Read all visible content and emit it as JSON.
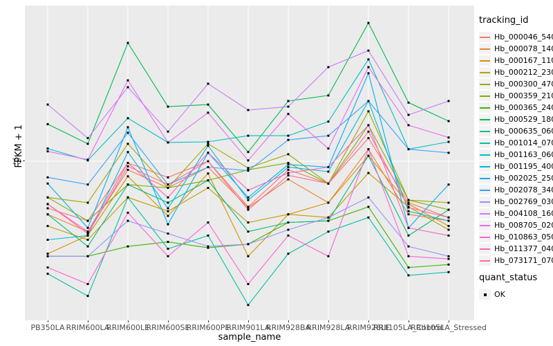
{
  "panel": {
    "bg": "#EBEBEB",
    "grid_color": "#FFFFFF",
    "point_color": "#000000",
    "tick_color": "#333333",
    "tick_label_color": "#4D4D4D"
  },
  "chart_data": {
    "type": "line",
    "title": "",
    "xlabel": "sample_name",
    "ylabel": "FPKM + 1",
    "y_scale": "log10",
    "ylim": [
      1.4,
      68
    ],
    "y_ticks": [
      10
    ],
    "y_tick_labels": [
      "10"
    ],
    "grid": "vertical-per-category-plus-y10",
    "legend_position": "right",
    "legend_title": "tracking_id",
    "legend2_title": "quant_status",
    "legend2_items": [
      {
        "label": "OK",
        "shape": "black-square"
      }
    ],
    "categories": [
      "PB350LA",
      "RRIM600LA",
      "RRIM600LE",
      "RRIM600SE",
      "RRIM600PE",
      "RRIM901LA",
      "RRIM928BA",
      "RRIM928LA",
      "RRIM928LE",
      "RRII105LA_Control",
      "RRII105LA_Stressed"
    ],
    "series": [
      {
        "name": "Hb_000046_540",
        "color": "#F8766D",
        "values": [
          5.6,
          4.8,
          9.8,
          8.2,
          10.0,
          5.7,
          9.0,
          7.6,
          13.3,
          6.0,
          5.0
        ]
      },
      {
        "name": "Hb_000078_140",
        "color": "#EA8331",
        "values": [
          5.2,
          4.2,
          9.0,
          7.2,
          9.3,
          5.65,
          8.0,
          6.0,
          11.6,
          5.2,
          4.8
        ]
      },
      {
        "name": "Hb_000167_110",
        "color": "#D89000",
        "values": [
          3.2,
          4.0,
          8.3,
          5.1,
          8.6,
          3.1,
          5.2,
          6.0,
          10.7,
          5.9,
          4.5
        ]
      },
      {
        "name": "Hb_000212_230",
        "color": "#C09B00",
        "values": [
          4.5,
          3.8,
          6.4,
          5.4,
          7.2,
          4.7,
          5.2,
          5.0,
          8.65,
          5.7,
          4.3
        ]
      },
      {
        "name": "Hb_000300_470",
        "color": "#A3A500",
        "values": [
          6.4,
          6.0,
          12.4,
          7.2,
          12.4,
          9.2,
          10.9,
          7.6,
          18.5,
          6.2,
          6.0
        ]
      },
      {
        "name": "Hb_000359_210",
        "color": "#7CAE00",
        "values": [
          6.4,
          4.8,
          7.5,
          7.2,
          7.9,
          9.0,
          9.8,
          7.6,
          15.6,
          6.2,
          5.5
        ]
      },
      {
        "name": "Hb_000365_240",
        "color": "#39B600",
        "values": [
          3.1,
          3.1,
          3.5,
          3.7,
          3.44,
          3.6,
          4.7,
          4.8,
          5.7,
          2.7,
          2.8
        ]
      },
      {
        "name": "Hb_000529_180",
        "color": "#00BB4E",
        "values": [
          15.8,
          12.4,
          43.0,
          19.6,
          20.1,
          11.2,
          21.0,
          22.5,
          55.0,
          20.6,
          16.4
        ]
      },
      {
        "name": "Hb_000635_060",
        "color": "#00BF7D",
        "values": [
          5.2,
          3.5,
          7.5,
          6.0,
          7.9,
          4.2,
          4.7,
          4.8,
          10.7,
          4.0,
          5.5
        ]
      },
      {
        "name": "Hb_001014_070",
        "color": "#00C1A3",
        "values": [
          2.5,
          1.9,
          6.4,
          3.4,
          4.0,
          1.7,
          3.2,
          4.2,
          5.0,
          2.45,
          2.55
        ]
      },
      {
        "name": "Hb_001163_060",
        "color": "#00BFC4",
        "values": [
          11.7,
          10.1,
          17.0,
          12.6,
          12.7,
          13.7,
          13.7,
          16.3,
          35.1,
          11.6,
          12.7
        ]
      },
      {
        "name": "Hb_001195_400",
        "color": "#00BAE0",
        "values": [
          3.8,
          4.0,
          11.2,
          5.6,
          12.1,
          6.2,
          9.3,
          8.8,
          21.0,
          5.4,
          4.8
        ]
      },
      {
        "name": "Hb_002025_250",
        "color": "#00B0F6",
        "values": [
          7.6,
          4.4,
          15.2,
          4.6,
          11.1,
          6.4,
          9.6,
          9.3,
          29.6,
          4.4,
          7.5
        ]
      },
      {
        "name": "Hb_002078_340",
        "color": "#35A2FF",
        "values": [
          8.2,
          7.5,
          14.2,
          7.5,
          9.3,
          8.9,
          13.0,
          13.7,
          21.0,
          11.6,
          11.1
        ]
      },
      {
        "name": "Hb_002769_030",
        "color": "#9590FF",
        "values": [
          3.1,
          3.1,
          4.8,
          4.1,
          3.5,
          3.6,
          4.3,
          5.0,
          6.4,
          3.5,
          3.1
        ]
      },
      {
        "name": "Hb_004108_160",
        "color": "#C77CFF",
        "values": [
          20.1,
          13.3,
          24.9,
          14.4,
          26.0,
          18.8,
          19.6,
          31.9,
          39.1,
          17.7,
          21.0
        ]
      },
      {
        "name": "Hb_008705_020",
        "color": "#E76BF3",
        "values": [
          11.3,
          10.2,
          27.1,
          12.6,
          18.2,
          10.1,
          17.9,
          11.7,
          31.9,
          15.6,
          13.4
        ]
      },
      {
        "name": "Hb_010863_050",
        "color": "#FA62DB",
        "values": [
          2.7,
          2.2,
          5.3,
          3.1,
          4.7,
          2.2,
          4.0,
          3.1,
          11.6,
          3.1,
          3.0
        ]
      },
      {
        "name": "Hb_011377_040",
        "color": "#FF62BC",
        "values": [
          5.9,
          4.2,
          9.8,
          6.4,
          11.1,
          7.0,
          8.65,
          9.3,
          15.6,
          4.4,
          4.0
        ]
      },
      {
        "name": "Hb_073171_070",
        "color": "#FF6A98",
        "values": [
          5.9,
          4.1,
          9.4,
          7.5,
          10.0,
          5.5,
          8.4,
          7.6,
          14.4,
          5.65,
          5.0
        ]
      }
    ]
  }
}
